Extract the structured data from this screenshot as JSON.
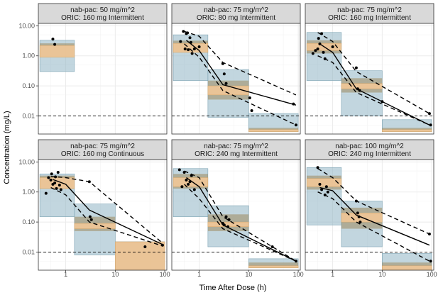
{
  "chart_data": {
    "type": "scatter",
    "x_label": "Time After Dose (h)",
    "y_label": "Concentration (mg/L)",
    "x_scale": "log",
    "y_scale": "log",
    "lloq": 0.01,
    "colors": {
      "outer_band": "#8fb4c4",
      "median_band": "#f5c896",
      "overlap_band": "#9e8a5c",
      "panel_bg": "#ffffff",
      "grid": "#ebebeb",
      "strip_bg": "#d9d9d9",
      "points": "#000000"
    },
    "panels": [
      {
        "strip": [
          "nab-pac: 50 mg/m^2",
          "ORIC: 160 mg Intermittent"
        ],
        "x_ticks": [
          1,
          10,
          100
        ],
        "x_range": [
          0.28,
          110
        ],
        "y_ticks": [
          10,
          1,
          0.1,
          0.01
        ],
        "y_tick_labels": [
          "10.00",
          "1.00",
          "0.10",
          "0.01"
        ],
        "y_range": [
          0.0025,
          12
        ],
        "bins": [
          {
            "x": [
              0.3,
              1.5
            ],
            "pi_outer": [
              0.3,
              3.3
            ],
            "median_band": [
              0.9,
              2.2
            ],
            "overlap": [
              0.9,
              2.6
            ]
          }
        ],
        "points": [
          [
            0.55,
            3.6
          ],
          [
            0.6,
            2.4
          ]
        ],
        "median": [],
        "pi_low": [],
        "pi_high": []
      },
      {
        "strip": [
          "nab-pac: 75 mg/m^2",
          "ORIC: 80 mg Intermittent"
        ],
        "x_ticks": [
          1,
          10,
          100
        ],
        "x_range": [
          0.28,
          110
        ],
        "y_ticks": [
          10,
          1,
          0.1,
          0.01
        ],
        "y_tick_labels": [
          "10.00",
          "1.00",
          "0.10",
          "0.01"
        ],
        "y_range": [
          0.0025,
          12
        ],
        "bins": [
          {
            "x": [
              0.3,
              1.5
            ],
            "pi_outer": [
              0.15,
              5.0
            ],
            "median_band": [
              1.3,
              2.6
            ],
            "overlap": [
              1.3,
              3.2
            ]
          },
          {
            "x": [
              1.5,
              10
            ],
            "pi_outer": [
              0.009,
              0.35
            ],
            "median_band": [
              0.05,
              0.1
            ],
            "overlap": [
              0.035,
              0.15
            ]
          },
          {
            "x": [
              10,
              100
            ],
            "pi_outer": [
              0.003,
              0.012
            ],
            "median_band": [
              0.003,
              0.0035
            ],
            "overlap": [
              0.003,
              0.004
            ]
          }
        ],
        "points": [
          [
            0.42,
            3.0
          ],
          [
            0.52,
            1.7
          ],
          [
            0.6,
            1.6
          ],
          [
            0.8,
            1.7
          ],
          [
            0.48,
            6.5
          ],
          [
            0.55,
            5.5
          ],
          [
            0.58,
            5.8
          ],
          [
            0.65,
            4.0
          ],
          [
            0.68,
            2.8
          ],
          [
            0.72,
            1.2
          ],
          [
            1.0,
            2.0
          ],
          [
            3.0,
            0.55
          ],
          [
            3.2,
            0.25
          ],
          [
            3.5,
            0.12
          ],
          [
            10.5,
            0.04
          ],
          [
            11.5,
            0.015
          ],
          [
            80,
            0.025
          ],
          [
            90,
            0.005
          ]
        ],
        "median": [
          [
            0.55,
            3.3
          ],
          [
            1.0,
            1.5
          ],
          [
            3.0,
            0.11
          ],
          [
            90,
            0.023
          ]
        ],
        "pi_low": [
          [
            0.5,
            2.5
          ],
          [
            1.0,
            0.9
          ],
          [
            3.0,
            0.07
          ],
          [
            90,
            0.005
          ]
        ],
        "pi_high": [
          [
            0.5,
            6.5
          ],
          [
            1.0,
            4.5
          ],
          [
            3.0,
            0.6
          ],
          [
            90,
            0.05
          ]
        ]
      },
      {
        "strip": [
          "nab-pac: 75 mg/m^2",
          "ORIC: 160 mg Intermittent"
        ],
        "x_ticks": [
          1,
          10,
          100
        ],
        "x_range": [
          0.28,
          110
        ],
        "y_ticks": [
          10,
          1,
          0.1,
          0.01
        ],
        "y_tick_labels": [
          "10.00",
          "1.00",
          "0.10",
          "0.01"
        ],
        "y_range": [
          0.0025,
          12
        ],
        "bins": [
          {
            "x": [
              0.3,
              1.5
            ],
            "pi_outer": [
              0.15,
              6.0
            ],
            "median_band": [
              1.5,
              2.6
            ],
            "overlap": [
              1.2,
              3.3
            ]
          },
          {
            "x": [
              1.5,
              10
            ],
            "pi_outer": [
              0.01,
              0.32
            ],
            "median_band": [
              0.08,
              0.12
            ],
            "overlap": [
              0.06,
              0.18
            ]
          },
          {
            "x": [
              10,
              100
            ],
            "pi_outer": [
              0.003,
              0.0075
            ],
            "median_band": [
              0.003,
              0.0035
            ],
            "overlap": [
              0.003,
              0.004
            ]
          }
        ],
        "points": [
          [
            0.4,
            1.2
          ],
          [
            0.45,
            1.5
          ],
          [
            0.5,
            1.7
          ],
          [
            0.52,
            3.8
          ],
          [
            0.55,
            2.5
          ],
          [
            0.6,
            5.5
          ],
          [
            0.65,
            1.3
          ],
          [
            0.7,
            0.8
          ],
          [
            1.0,
            2.0
          ],
          [
            3.0,
            0.4
          ],
          [
            3.2,
            0.08
          ],
          [
            3.5,
            0.07
          ],
          [
            10,
            0.03
          ],
          [
            90,
            0.012
          ],
          [
            95,
            0.005
          ]
        ],
        "median": [
          [
            0.55,
            2.5
          ],
          [
            1.0,
            1.3
          ],
          [
            3.0,
            0.08
          ],
          [
            90,
            0.005
          ]
        ],
        "pi_low": [
          [
            0.5,
            1.0
          ],
          [
            1.0,
            0.6
          ],
          [
            3.0,
            0.06
          ],
          [
            90,
            0.005
          ]
        ],
        "pi_high": [
          [
            0.5,
            6.0
          ],
          [
            1.0,
            3.0
          ],
          [
            3.0,
            0.3
          ],
          [
            90,
            0.012
          ]
        ]
      },
      {
        "strip": [
          "nab-pac: 75 mg/m^2",
          "ORIC: 160 mg Continuous"
        ],
        "x_ticks": [
          1,
          10,
          100
        ],
        "x_range": [
          0.28,
          110
        ],
        "y_ticks": [
          10,
          1,
          0.1,
          0.01
        ],
        "y_tick_labels": [
          "10.00",
          "1.00",
          "0.10",
          "0.01"
        ],
        "y_range": [
          0.0025,
          12
        ],
        "bins": [
          {
            "x": [
              0.3,
              1.5
            ],
            "pi_outer": [
              0.15,
              4.0
            ],
            "median_band": [
              1.3,
              3.0
            ],
            "overlap": [
              1.3,
              3.5
            ]
          },
          {
            "x": [
              1.5,
              10
            ],
            "pi_outer": [
              0.008,
              0.4
            ],
            "median_band": [
              0.06,
              0.09
            ],
            "overlap": [
              0.05,
              0.15
            ]
          },
          {
            "x": [
              10,
              100
            ],
            "pi_outer": [
              0.0025,
              0.022
            ],
            "median_band": [
              0.0025,
              0.022
            ],
            "overlap": [
              0.0025,
              0.022
            ]
          }
        ],
        "points": [
          [
            0.4,
            0.9
          ],
          [
            0.45,
            3.0
          ],
          [
            0.5,
            2.5
          ],
          [
            0.52,
            4.0
          ],
          [
            0.55,
            1.8
          ],
          [
            0.6,
            2.0
          ],
          [
            0.62,
            3.2
          ],
          [
            0.65,
            1.3
          ],
          [
            0.7,
            4.5
          ],
          [
            0.75,
            1.7
          ],
          [
            0.8,
            1.2
          ],
          [
            3.0,
            2.2
          ],
          [
            3.1,
            0.15
          ],
          [
            3.3,
            0.12
          ],
          [
            40,
            0.015
          ],
          [
            90,
            0.017
          ]
        ],
        "median": [
          [
            0.55,
            2.6
          ],
          [
            1.0,
            1.8
          ],
          [
            3.0,
            0.25
          ],
          [
            90,
            0.018
          ]
        ],
        "pi_low": [
          [
            0.5,
            1.4
          ],
          [
            1.0,
            0.8
          ],
          [
            3.0,
            0.1
          ],
          [
            90,
            0.016
          ]
        ],
        "pi_high": [
          [
            0.5,
            3.3
          ],
          [
            1.0,
            3.0
          ],
          [
            3.0,
            2.2
          ],
          [
            90,
            0.02
          ]
        ]
      },
      {
        "strip": [
          "nab-pac: 75 mg/m^2",
          "ORIC: 240 mg Intermittent"
        ],
        "x_ticks": [
          1,
          10,
          100
        ],
        "x_range": [
          0.28,
          110
        ],
        "y_ticks": [
          10,
          1,
          0.1,
          0.01
        ],
        "y_tick_labels": [
          "10.00",
          "1.00",
          "0.10",
          "0.01"
        ],
        "y_range": [
          0.0025,
          12
        ],
        "bins": [
          {
            "x": [
              0.3,
              1.5
            ],
            "pi_outer": [
              0.15,
              6.0
            ],
            "median_band": [
              1.5,
              3.0
            ],
            "overlap": [
              1.3,
              4.0
            ]
          },
          {
            "x": [
              1.5,
              10
            ],
            "pi_outer": [
              0.015,
              0.35
            ],
            "median_band": [
              0.07,
              0.1
            ],
            "overlap": [
              0.05,
              0.18
            ]
          },
          {
            "x": [
              10,
              100
            ],
            "pi_outer": [
              0.003,
              0.006
            ],
            "median_band": [
              0.003,
              0.0035
            ],
            "overlap": [
              0.003,
              0.0045
            ]
          }
        ],
        "points": [
          [
            0.4,
            5.5
          ],
          [
            0.45,
            1.5
          ],
          [
            0.5,
            4.5
          ],
          [
            0.55,
            2.5
          ],
          [
            0.6,
            1.8
          ],
          [
            0.65,
            2.2
          ],
          [
            0.7,
            3.5
          ],
          [
            0.8,
            1.2
          ],
          [
            3.0,
            0.09
          ],
          [
            3.2,
            0.08
          ],
          [
            3.5,
            0.15
          ],
          [
            3.8,
            0.07
          ],
          [
            4.0,
            0.12
          ],
          [
            30,
            0.015
          ],
          [
            90,
            0.005
          ]
        ],
        "median": [
          [
            0.55,
            3.0
          ],
          [
            1.0,
            1.5
          ],
          [
            3.0,
            0.08
          ],
          [
            90,
            0.005
          ]
        ],
        "pi_low": [
          [
            0.5,
            1.8
          ],
          [
            1.0,
            0.6
          ],
          [
            3.0,
            0.06
          ],
          [
            90,
            0.005
          ]
        ],
        "pi_high": [
          [
            0.5,
            5.0
          ],
          [
            1.0,
            3.0
          ],
          [
            3.0,
            0.15
          ],
          [
            90,
            0.005
          ]
        ]
      },
      {
        "strip": [
          "nab-pac: 100 mg/m^2",
          "ORIC: 240 mg Intermittent"
        ],
        "x_ticks": [
          1,
          10,
          100
        ],
        "x_range": [
          0.28,
          110
        ],
        "y_ticks": [
          10,
          1,
          0.1,
          0.01
        ],
        "y_tick_labels": [
          "10.00",
          "1.00",
          "0.10",
          "0.01"
        ],
        "y_range": [
          0.0025,
          12
        ],
        "bins": [
          {
            "x": [
              0.3,
              1.5
            ],
            "pi_outer": [
              0.08,
              6.5
            ],
            "median_band": [
              1.5,
              2.8
            ],
            "overlap": [
              1.2,
              3.5
            ]
          },
          {
            "x": [
              1.5,
              10
            ],
            "pi_outer": [
              0.015,
              0.5
            ],
            "median_band": [
              0.1,
              0.2
            ],
            "overlap": [
              0.06,
              0.3
            ]
          },
          {
            "x": [
              10,
              100
            ],
            "pi_outer": [
              0.0025,
              0.009
            ],
            "median_band": [
              0.0025,
              0.0035
            ],
            "overlap": [
              0.0025,
              0.0045
            ]
          }
        ],
        "points": [
          [
            0.5,
            6.5
          ],
          [
            0.55,
            1.8
          ],
          [
            0.6,
            1.2
          ],
          [
            0.7,
            0.8
          ],
          [
            0.75,
            1.5
          ],
          [
            0.8,
            1.0
          ],
          [
            3.0,
            0.5
          ],
          [
            3.2,
            0.2
          ],
          [
            3.4,
            0.15
          ],
          [
            3.6,
            0.1
          ],
          [
            90,
            0.04
          ],
          [
            95,
            0.005
          ]
        ],
        "median": [
          [
            0.55,
            1.4
          ],
          [
            1.0,
            1.1
          ],
          [
            3.0,
            0.17
          ],
          [
            90,
            0.017
          ]
        ],
        "pi_low": [
          [
            0.5,
            1.0
          ],
          [
            1.0,
            0.6
          ],
          [
            3.0,
            0.1
          ],
          [
            90,
            0.005
          ]
        ],
        "pi_high": [
          [
            0.5,
            6.0
          ],
          [
            1.0,
            3.0
          ],
          [
            3.0,
            0.5
          ],
          [
            90,
            0.04
          ]
        ]
      }
    ]
  }
}
